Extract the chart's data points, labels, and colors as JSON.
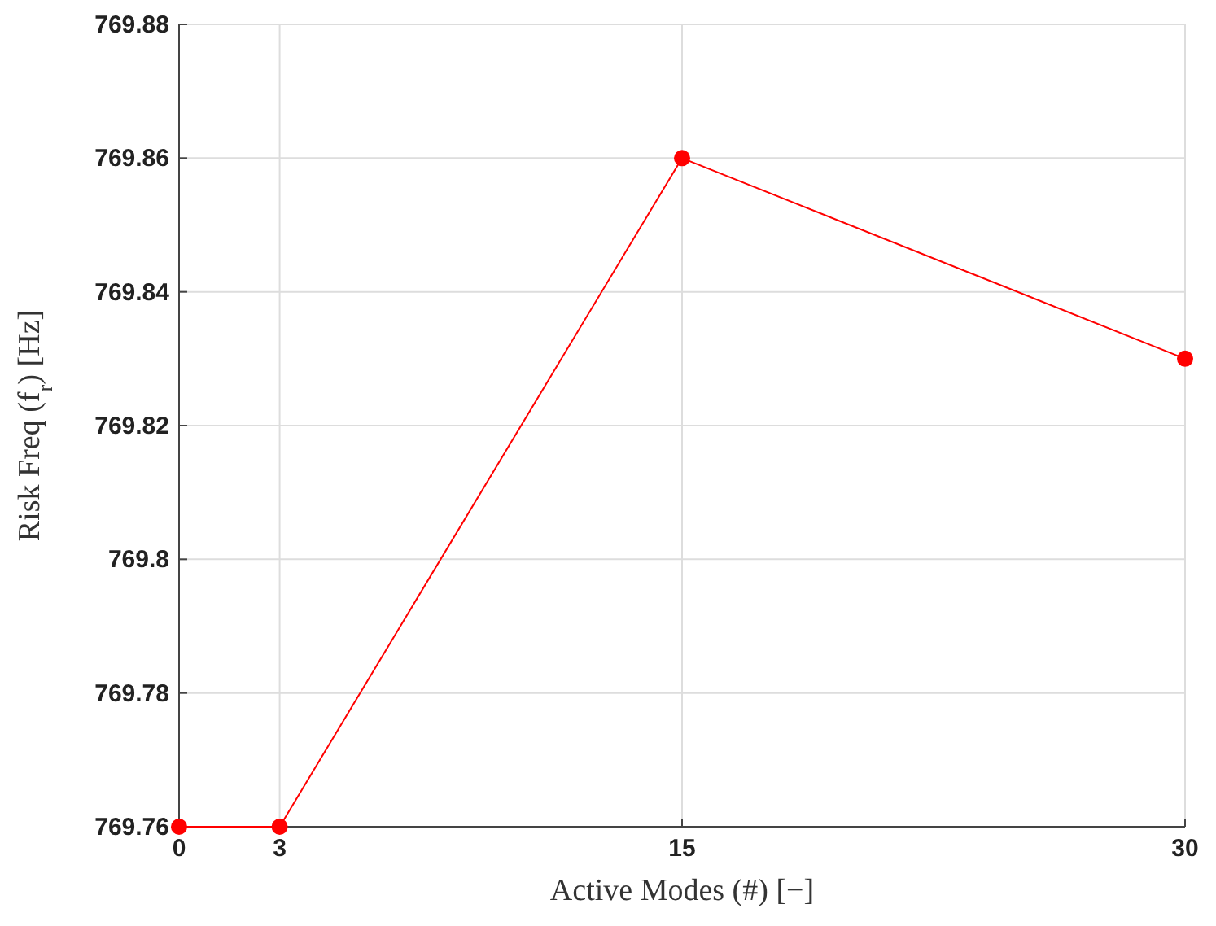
{
  "chart_data": {
    "type": "line",
    "xlabel": "Active Modes (#) [−]",
    "ylabel": "Risk Freq (f$_{r}$) [Hz]",
    "x": [
      0,
      3,
      15,
      30
    ],
    "series": [
      {
        "color": "#ff0000",
        "values": [
          769.76,
          769.76,
          769.86,
          769.83
        ]
      }
    ],
    "xlim": [
      0,
      30
    ],
    "xticks": [
      0,
      3,
      15,
      30
    ],
    "ylim": [
      769.76,
      769.88
    ],
    "yticks": [
      769.76,
      769.78,
      769.8,
      769.82,
      769.84,
      769.86,
      769.88
    ],
    "grid": true,
    "marker": "circle",
    "line_style": "solid"
  }
}
